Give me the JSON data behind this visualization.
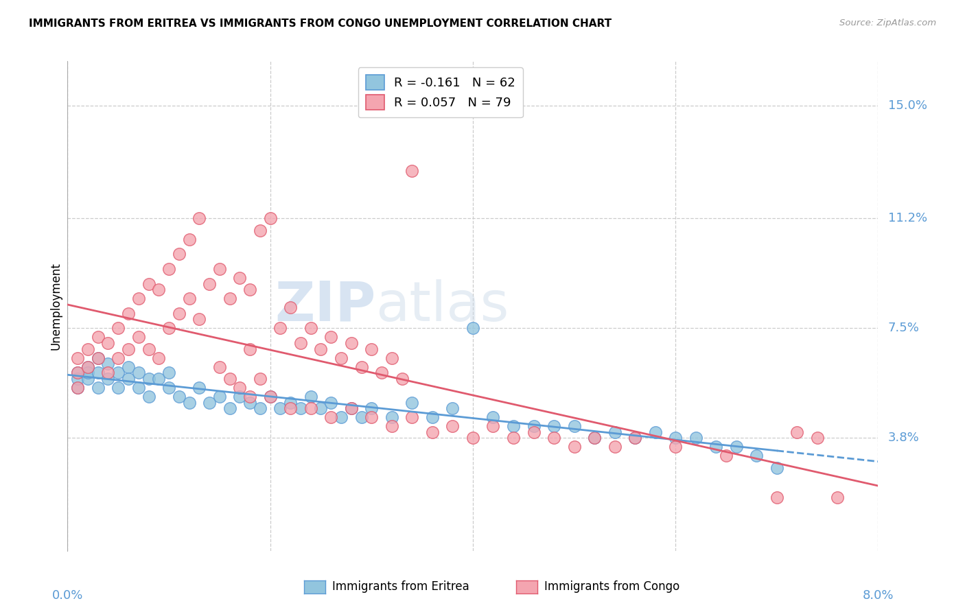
{
  "title": "IMMIGRANTS FROM ERITREA VS IMMIGRANTS FROM CONGO UNEMPLOYMENT CORRELATION CHART",
  "source": "Source: ZipAtlas.com",
  "ylabel": "Unemployment",
  "ytick_labels": [
    "15.0%",
    "11.2%",
    "7.5%",
    "3.8%"
  ],
  "ytick_values": [
    0.15,
    0.112,
    0.075,
    0.038
  ],
  "xlim": [
    0.0,
    0.08
  ],
  "ylim": [
    0.0,
    0.165
  ],
  "legend_r1": "R = -0.161",
  "legend_n1": "N = 62",
  "legend_r2": "R = 0.057",
  "legend_n2": "N = 79",
  "color_eritrea": "#92c5de",
  "color_congo": "#f4a5b0",
  "color_line_eritrea": "#5b9bd5",
  "color_line_congo": "#e05a6e",
  "color_axis_labels": "#5b9bd5",
  "watermark_zip": "ZIP",
  "watermark_atlas": "atlas",
  "eritrea_x": [
    0.001,
    0.001,
    0.001,
    0.002,
    0.002,
    0.002,
    0.003,
    0.003,
    0.003,
    0.004,
    0.004,
    0.005,
    0.005,
    0.006,
    0.006,
    0.007,
    0.007,
    0.008,
    0.008,
    0.009,
    0.01,
    0.01,
    0.011,
    0.012,
    0.013,
    0.014,
    0.015,
    0.016,
    0.017,
    0.018,
    0.019,
    0.02,
    0.021,
    0.022,
    0.023,
    0.024,
    0.025,
    0.026,
    0.027,
    0.028,
    0.029,
    0.03,
    0.032,
    0.034,
    0.036,
    0.038,
    0.04,
    0.042,
    0.044,
    0.046,
    0.048,
    0.05,
    0.052,
    0.054,
    0.056,
    0.058,
    0.06,
    0.062,
    0.064,
    0.066,
    0.068,
    0.07
  ],
  "eritrea_y": [
    0.06,
    0.055,
    0.058,
    0.062,
    0.058,
    0.06,
    0.065,
    0.06,
    0.055,
    0.063,
    0.058,
    0.06,
    0.055,
    0.062,
    0.058,
    0.055,
    0.06,
    0.058,
    0.052,
    0.058,
    0.055,
    0.06,
    0.052,
    0.05,
    0.055,
    0.05,
    0.052,
    0.048,
    0.052,
    0.05,
    0.048,
    0.052,
    0.048,
    0.05,
    0.048,
    0.052,
    0.048,
    0.05,
    0.045,
    0.048,
    0.045,
    0.048,
    0.045,
    0.05,
    0.045,
    0.048,
    0.075,
    0.045,
    0.042,
    0.042,
    0.042,
    0.042,
    0.038,
    0.04,
    0.038,
    0.04,
    0.038,
    0.038,
    0.035,
    0.035,
    0.032,
    0.028
  ],
  "congo_x": [
    0.001,
    0.001,
    0.001,
    0.002,
    0.002,
    0.003,
    0.003,
    0.004,
    0.004,
    0.005,
    0.005,
    0.006,
    0.006,
    0.007,
    0.007,
    0.008,
    0.008,
    0.009,
    0.009,
    0.01,
    0.01,
    0.011,
    0.011,
    0.012,
    0.012,
    0.013,
    0.013,
    0.014,
    0.015,
    0.016,
    0.017,
    0.018,
    0.018,
    0.019,
    0.019,
    0.02,
    0.021,
    0.022,
    0.023,
    0.024,
    0.025,
    0.026,
    0.027,
    0.028,
    0.029,
    0.03,
    0.031,
    0.032,
    0.033,
    0.034,
    0.015,
    0.016,
    0.017,
    0.018,
    0.02,
    0.022,
    0.024,
    0.026,
    0.028,
    0.03,
    0.032,
    0.034,
    0.036,
    0.038,
    0.04,
    0.042,
    0.044,
    0.046,
    0.048,
    0.05,
    0.052,
    0.054,
    0.056,
    0.06,
    0.065,
    0.07,
    0.072,
    0.074,
    0.076
  ],
  "congo_y": [
    0.06,
    0.065,
    0.055,
    0.068,
    0.062,
    0.072,
    0.065,
    0.07,
    0.06,
    0.075,
    0.065,
    0.08,
    0.068,
    0.085,
    0.072,
    0.09,
    0.068,
    0.088,
    0.065,
    0.095,
    0.075,
    0.1,
    0.08,
    0.105,
    0.085,
    0.112,
    0.078,
    0.09,
    0.095,
    0.085,
    0.092,
    0.088,
    0.068,
    0.108,
    0.058,
    0.112,
    0.075,
    0.082,
    0.07,
    0.075,
    0.068,
    0.072,
    0.065,
    0.07,
    0.062,
    0.068,
    0.06,
    0.065,
    0.058,
    0.128,
    0.062,
    0.058,
    0.055,
    0.052,
    0.052,
    0.048,
    0.048,
    0.045,
    0.048,
    0.045,
    0.042,
    0.045,
    0.04,
    0.042,
    0.038,
    0.042,
    0.038,
    0.04,
    0.038,
    0.035,
    0.038,
    0.035,
    0.038,
    0.035,
    0.032,
    0.018,
    0.04,
    0.038,
    0.018
  ]
}
